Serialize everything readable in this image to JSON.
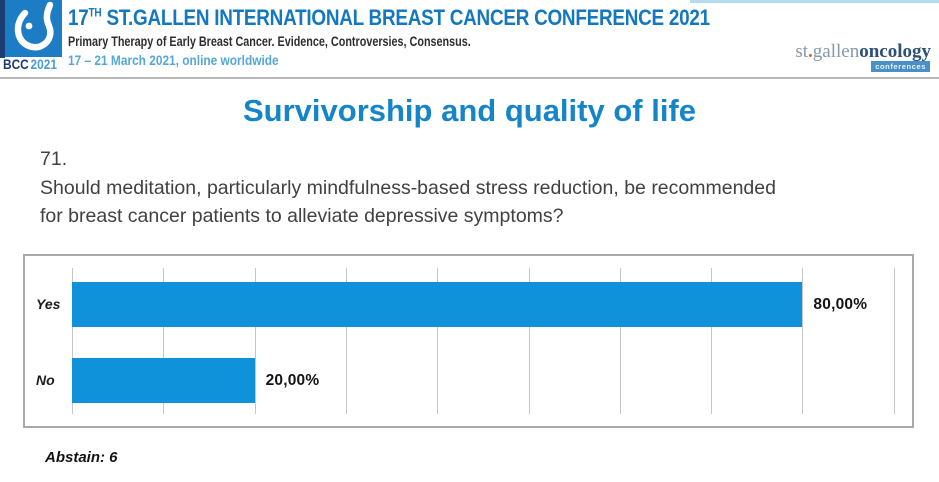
{
  "header": {
    "logo": {
      "acronym": "BCC",
      "year": "2021"
    },
    "title_prefix": "17",
    "title_superscript": "TH",
    "title_rest": "ST.GALLEN INTERNATIONAL BREAST CANCER CONFERENCE 2021",
    "subtitle": "Primary Therapy of Early Breast Cancer. Evidence, Controversies, Consensus.",
    "dates": "17 – 21 March 2021, online worldwide",
    "brand": {
      "st": "st",
      "dot": ".",
      "gallen": "gallen",
      "oncology": "oncology",
      "badge": "conferences"
    }
  },
  "slide": {
    "title": "Survivorship and quality of life",
    "question_number": "71.",
    "question_text": "Should meditation, particularly mindfulness-based stress reduction, be recommended for breast cancer patients to alleviate depressive symptoms?",
    "abstain_note": "Abstain: 6"
  },
  "chart_data": {
    "type": "bar",
    "orientation": "horizontal",
    "categories": [
      "Yes",
      "No"
    ],
    "values": [
      80.0,
      20.0
    ],
    "value_labels": [
      "80,00%",
      "20,00%"
    ],
    "xlim": [
      0,
      92
    ],
    "gridline_interval": 10,
    "grid": true,
    "legend": false,
    "bar_color": "#0f92da",
    "abstain_count": 6
  },
  "colors": {
    "accent_blue": "#1585c9",
    "header_blue": "#1478c0",
    "date_blue": "#55a7d7",
    "bar_blue": "#0f92da"
  }
}
